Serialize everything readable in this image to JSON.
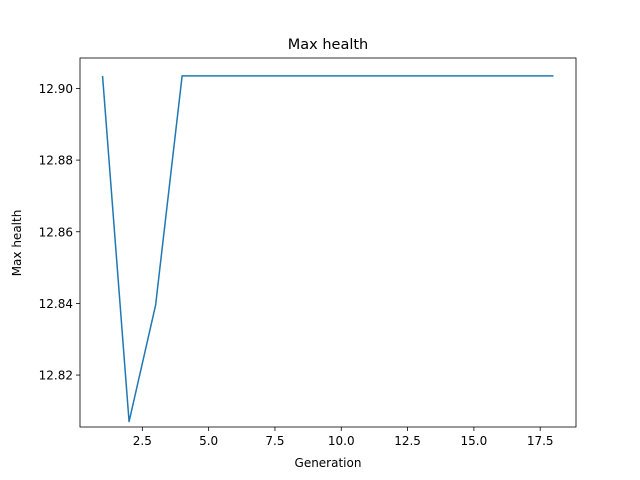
{
  "chart_data": {
    "type": "line",
    "title": "Max health",
    "xlabel": "Generation",
    "ylabel": "Max health",
    "xlim": [
      0.15,
      18.85
    ],
    "ylim": [
      12.8055,
      12.9085
    ],
    "xticks": [
      2.5,
      5.0,
      7.5,
      10.0,
      12.5,
      15.0,
      17.5
    ],
    "xtick_labels": [
      "2.5",
      "5.0",
      "7.5",
      "10.0",
      "12.5",
      "15.0",
      "17.5"
    ],
    "yticks": [
      12.82,
      12.84,
      12.86,
      12.88,
      12.9
    ],
    "ytick_labels": [
      "12.82",
      "12.84",
      "12.86",
      "12.88",
      "12.90"
    ],
    "grid": false,
    "legend": "none",
    "series": [
      {
        "color": "#1f77b4",
        "x": [
          1,
          2,
          3,
          4,
          5,
          6,
          7,
          8,
          9,
          10,
          11,
          12,
          13,
          14,
          15,
          16,
          17,
          18
        ],
        "y": [
          12.9035,
          12.807,
          12.8395,
          12.9035,
          12.9035,
          12.9035,
          12.9035,
          12.9035,
          12.9035,
          12.9035,
          12.9035,
          12.9035,
          12.9035,
          12.9035,
          12.9035,
          12.9035,
          12.9035,
          12.9035
        ]
      }
    ]
  }
}
